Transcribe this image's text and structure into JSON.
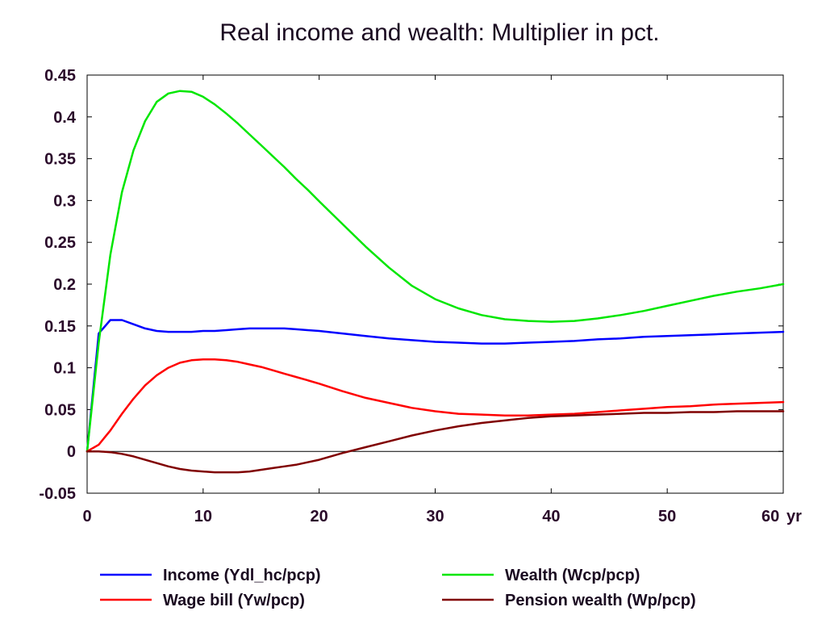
{
  "chart_data": {
    "type": "line",
    "title": "Real income and wealth: Multiplier in pct.",
    "xlabel": "",
    "ylabel": "",
    "x_unit_label": "yr",
    "xlim": [
      0,
      60
    ],
    "ylim": [
      -0.05,
      0.45
    ],
    "xticks": [
      0,
      10,
      20,
      30,
      40,
      50,
      60
    ],
    "yticks": [
      -0.05,
      0,
      0.05,
      0.1,
      0.15,
      0.2,
      0.25,
      0.3,
      0.35,
      0.4,
      0.45
    ],
    "ytick_labels": [
      "-0.05",
      "0",
      "0.05",
      "0.1",
      "0.15",
      "0.2",
      "0.25",
      "0.3",
      "0.35",
      "0.4",
      "0.45"
    ],
    "zero_line": true,
    "grid": false,
    "legend_position": "bottom",
    "x": [
      0,
      1,
      2,
      3,
      4,
      5,
      6,
      7,
      8,
      9,
      10,
      11,
      12,
      13,
      14,
      15,
      16,
      17,
      18,
      19,
      20,
      22,
      24,
      26,
      28,
      30,
      32,
      34,
      36,
      38,
      40,
      42,
      44,
      46,
      48,
      50,
      52,
      54,
      56,
      58,
      60
    ],
    "series": [
      {
        "name": "Income (Ydl_hc/pcp)",
        "color": "#0000ff",
        "values": [
          0,
          0.141,
          0.157,
          0.157,
          0.152,
          0.147,
          0.144,
          0.143,
          0.143,
          0.143,
          0.144,
          0.144,
          0.145,
          0.146,
          0.147,
          0.147,
          0.147,
          0.147,
          0.146,
          0.145,
          0.144,
          0.141,
          0.138,
          0.135,
          0.133,
          0.131,
          0.13,
          0.129,
          0.129,
          0.13,
          0.131,
          0.132,
          0.134,
          0.135,
          0.137,
          0.138,
          0.139,
          0.14,
          0.141,
          0.142,
          0.143
        ]
      },
      {
        "name": "Wealth (Wcp/pcp)",
        "color": "#00e600",
        "values": [
          0,
          0.13,
          0.235,
          0.31,
          0.36,
          0.395,
          0.418,
          0.428,
          0.431,
          0.43,
          0.424,
          0.415,
          0.404,
          0.392,
          0.379,
          0.366,
          0.353,
          0.34,
          0.326,
          0.313,
          0.299,
          0.272,
          0.245,
          0.22,
          0.198,
          0.182,
          0.171,
          0.163,
          0.158,
          0.156,
          0.155,
          0.156,
          0.159,
          0.163,
          0.168,
          0.174,
          0.18,
          0.186,
          0.191,
          0.195,
          0.2
        ]
      },
      {
        "name": "Wage bill (Yw/pcp)",
        "color": "#ff0000",
        "values": [
          0,
          0.008,
          0.025,
          0.045,
          0.063,
          0.079,
          0.091,
          0.1,
          0.106,
          0.109,
          0.11,
          0.11,
          0.109,
          0.107,
          0.104,
          0.101,
          0.097,
          0.093,
          0.089,
          0.085,
          0.081,
          0.072,
          0.064,
          0.058,
          0.052,
          0.048,
          0.045,
          0.044,
          0.043,
          0.043,
          0.044,
          0.045,
          0.047,
          0.049,
          0.051,
          0.053,
          0.054,
          0.056,
          0.057,
          0.058,
          0.059
        ]
      },
      {
        "name": "Pension wealth (Wp/pcp)",
        "color": "#800000",
        "values": [
          0,
          0,
          -0.001,
          -0.003,
          -0.006,
          -0.01,
          -0.014,
          -0.018,
          -0.021,
          -0.023,
          -0.024,
          -0.025,
          -0.025,
          -0.025,
          -0.024,
          -0.022,
          -0.02,
          -0.018,
          -0.016,
          -0.013,
          -0.01,
          -0.002,
          0.005,
          0.012,
          0.019,
          0.025,
          0.03,
          0.034,
          0.037,
          0.04,
          0.042,
          0.043,
          0.044,
          0.045,
          0.046,
          0.046,
          0.047,
          0.047,
          0.048,
          0.048,
          0.048
        ]
      }
    ]
  }
}
